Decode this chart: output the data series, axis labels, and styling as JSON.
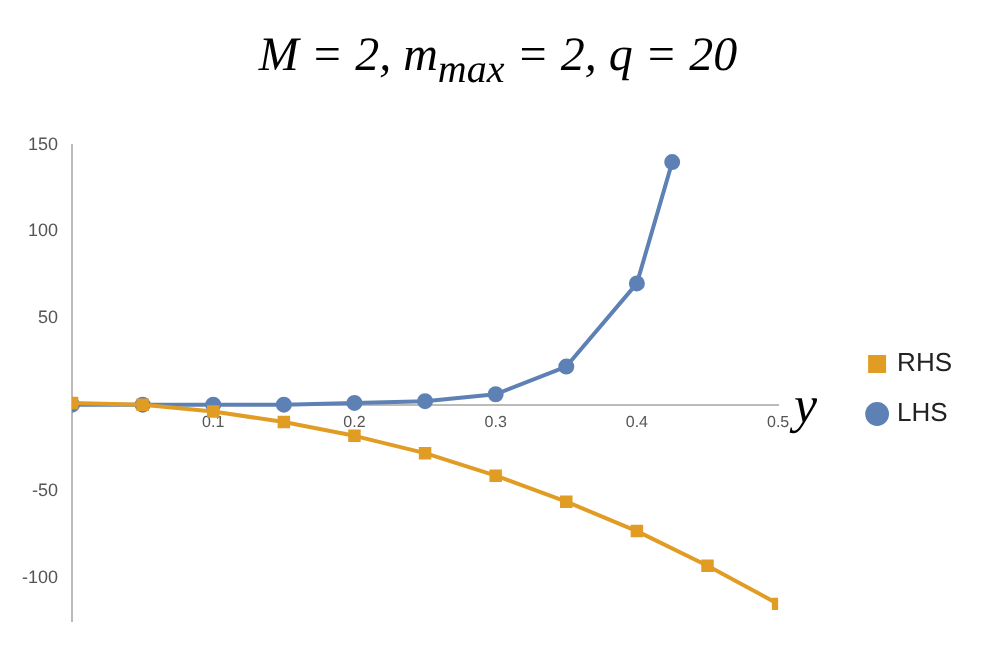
{
  "chart_data": {
    "type": "line",
    "title": "M = 2, m$_{max}$ = 2, q = 20",
    "xlabel": "y",
    "xlim": [
      0,
      0.5
    ],
    "xticks": [
      {
        "value": 0,
        "label": null
      },
      0.1,
      0.2,
      0.3,
      0.4,
      0.5
    ],
    "ylim": [
      -125,
      150
    ],
    "yticks": [
      -100,
      -50,
      50,
      100,
      150
    ],
    "grid": false,
    "legend": "right",
    "series": [
      {
        "name": "LHS",
        "color": "#5e81b5",
        "marker": "circle",
        "x": [
          0,
          0.05,
          0.1,
          0.15,
          0.2,
          0.25,
          0.3,
          0.35,
          0.4,
          0.425
        ],
        "values": [
          0,
          0,
          0,
          0,
          1,
          2,
          6,
          22,
          70,
          140
        ]
      },
      {
        "name": "RHS",
        "color": "#e19c24",
        "marker": "square",
        "x": [
          0,
          0.05,
          0.1,
          0.15,
          0.2,
          0.25,
          0.3,
          0.35,
          0.4,
          0.45,
          0.5
        ],
        "values": [
          1,
          0,
          -4,
          -10,
          -18,
          -28,
          -41,
          -56,
          -73,
          -93,
          -115
        ]
      }
    ]
  }
}
